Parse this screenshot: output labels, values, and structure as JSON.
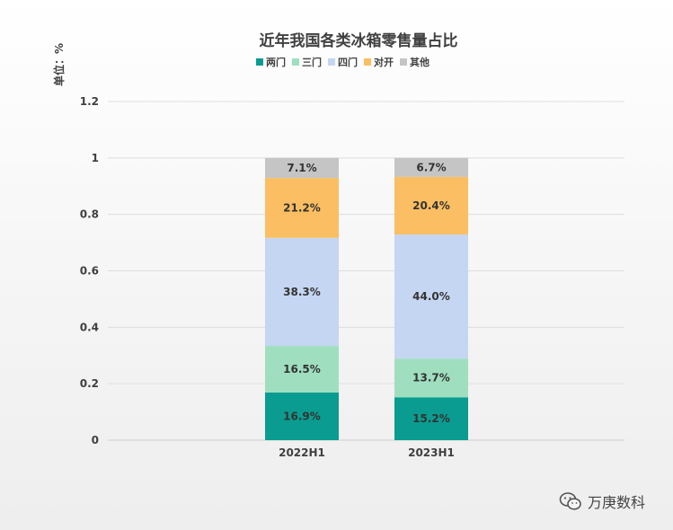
{
  "chart_data": {
    "type": "bar",
    "stacked": true,
    "title": "近年我国各类冰箱零售量占比",
    "ylabel": "单位：%",
    "xlabel": "",
    "ylim": [
      0,
      1.2
    ],
    "yticks": [
      "0",
      "0.2",
      "0.4",
      "0.6",
      "0.8",
      "1",
      "1.2"
    ],
    "ytick_values": [
      0,
      0.2,
      0.4,
      0.6,
      0.8,
      1.0,
      1.2
    ],
    "grid": true,
    "legend_position": "top",
    "categories": [
      "2022H1",
      "2023H1"
    ],
    "series": [
      {
        "name": "两门",
        "color": "#0a9c90",
        "values": [
          0.169,
          0.152
        ],
        "labels": [
          "16.9%",
          "15.2%"
        ]
      },
      {
        "name": "三门",
        "color": "#9fdfbf",
        "values": [
          0.165,
          0.137
        ],
        "labels": [
          "16.5%",
          "13.7%"
        ]
      },
      {
        "name": "四门",
        "color": "#c5d6f2",
        "values": [
          0.383,
          0.44
        ],
        "labels": [
          "38.3%",
          "44.0%"
        ]
      },
      {
        "name": "对开",
        "color": "#fbbe62",
        "values": [
          0.212,
          0.204
        ],
        "labels": [
          "21.2%",
          "20.4%"
        ]
      },
      {
        "name": "其他",
        "color": "#c5c5c5",
        "values": [
          0.071,
          0.067
        ],
        "labels": [
          "7.1%",
          "6.7%"
        ]
      }
    ]
  },
  "watermark": {
    "text": "万庚数科",
    "icon": "wechat-icon"
  }
}
